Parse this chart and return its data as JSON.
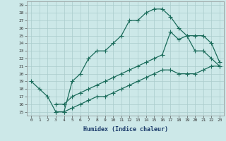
{
  "title": "",
  "xlabel": "Humidex (Indice chaleur)",
  "bg_color": "#cce8e8",
  "line_color": "#1a6b5a",
  "grid_color": "#aacccc",
  "xmin": 0,
  "xmax": 23,
  "ymin": 15,
  "ymax": 29,
  "line1_x": [
    0,
    1,
    2,
    3,
    4,
    5,
    6,
    7,
    8,
    9,
    10,
    11,
    12,
    13,
    14,
    15,
    16,
    17,
    18,
    19,
    20,
    21,
    22,
    23
  ],
  "line1_y": [
    19,
    18,
    17,
    15,
    15,
    19,
    20,
    22,
    23,
    23,
    24,
    25,
    27,
    27,
    28,
    28.5,
    28.5,
    27.5,
    26,
    25,
    23,
    23,
    22,
    21
  ],
  "line2_x": [
    3,
    4,
    5,
    6,
    7,
    8,
    9,
    10,
    11,
    12,
    13,
    14,
    15,
    16,
    17,
    18,
    19,
    20,
    21,
    22,
    23
  ],
  "line2_y": [
    16,
    16,
    17,
    17.5,
    18,
    18.5,
    19,
    19.5,
    20,
    20.5,
    21,
    21.5,
    22,
    22.5,
    25.5,
    24.5,
    25,
    25,
    25,
    24,
    21.5
  ],
  "line3_x": [
    3,
    4,
    5,
    6,
    7,
    8,
    9,
    10,
    11,
    12,
    13,
    14,
    15,
    16,
    17,
    18,
    19,
    20,
    21,
    22,
    23
  ],
  "line3_y": [
    15,
    15,
    15.5,
    16,
    16.5,
    17,
    17,
    17.5,
    18,
    18.5,
    19,
    19.5,
    20,
    20.5,
    20.5,
    20,
    20,
    20,
    20.5,
    21,
    21
  ],
  "marker": "+",
  "markersize": 4,
  "linewidth": 0.9
}
